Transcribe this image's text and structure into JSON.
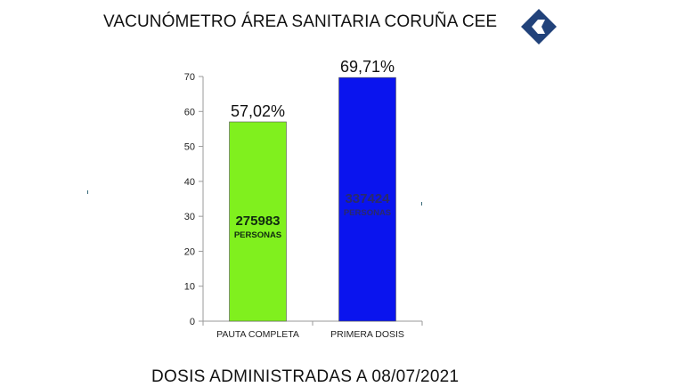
{
  "header": {
    "title": "VACUNÓMETRO ÁREA SANITARIA CORUÑA CEE",
    "logo_icon": "cadena-ser-logo-icon",
    "logo_color": "#21427a"
  },
  "footer": {
    "text": "DOSIS ADMINISTRADAS A 08/07/2021"
  },
  "chart_data": {
    "type": "bar",
    "title": "",
    "categories": [
      "PAUTA COMPLETA",
      "PRIMERA DOSIS"
    ],
    "values": [
      57.02,
      69.71
    ],
    "value_labels": [
      "57,02%",
      "69,71%"
    ],
    "inner_counts": [
      "275983",
      "337424"
    ],
    "inner_units": [
      "PERSONAS",
      "PERSONAS"
    ],
    "colors": [
      "#80f01e",
      "#0a14ee"
    ],
    "ylim": [
      0,
      70
    ],
    "yticks": [
      0,
      10,
      20,
      30,
      40,
      50,
      60,
      70
    ],
    "grid": false,
    "xlabel": "",
    "ylabel": ""
  }
}
